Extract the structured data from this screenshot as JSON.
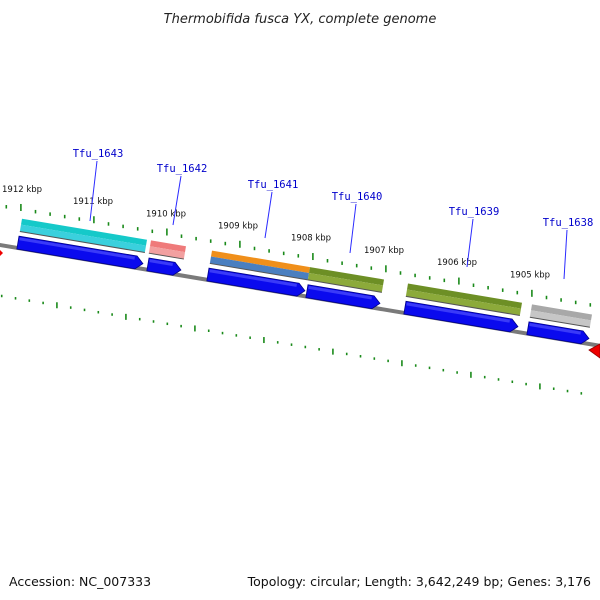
{
  "title": "Thermobifida fusca YX, complete genome",
  "footer": {
    "accession": "Accession: NC_007333",
    "summary": "Topology: circular; Length: 3,642,249 bp; Genes: 3,176"
  },
  "colors": {
    "backbone": "#7a7a7a",
    "tick": "#1a8a1a",
    "cds": "#0a0aee",
    "label": "#0000cc",
    "pointer": "#2a2aff",
    "offscreen_feature": "#ee0000"
  },
  "kbp_labels": [
    "1912 kbp",
    "1911 kbp",
    "1910 kbp",
    "1909 kbp",
    "1908 kbp",
    "1907 kbp",
    "1906 kbp",
    "1905 kbp"
  ],
  "genes": [
    {
      "label": "Tfu_1643",
      "bar_colors": [
        "#15c9c9",
        "#3ad0dd"
      ]
    },
    {
      "label": "Tfu_1642",
      "bar_colors": [
        "#ef7a7a",
        "#f2a0a0"
      ]
    },
    {
      "label": "Tfu_1641",
      "bar_colors": [
        "#f08f1a",
        "#4a7fc0"
      ]
    },
    {
      "label": "Tfu_1640",
      "bar_colors": [
        "#6d8f25",
        "#8caa3a"
      ]
    },
    {
      "label": "Tfu_1639",
      "bar_colors": [
        "#6d8f25",
        "#8caa3a"
      ]
    },
    {
      "label": "Tfu_1638",
      "bar_colors": [
        "#a8a8a8",
        "#c6c6c6"
      ]
    }
  ]
}
